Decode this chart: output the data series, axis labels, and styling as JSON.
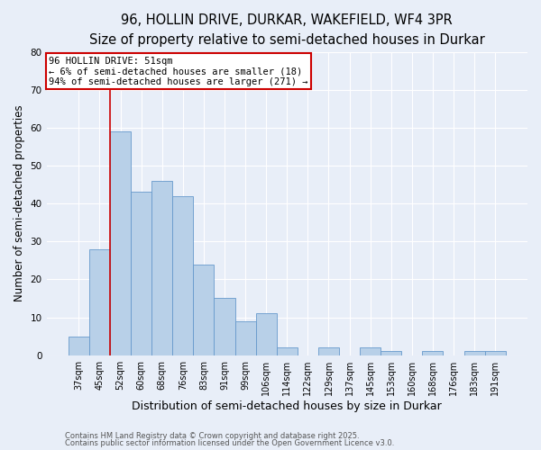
{
  "title": "96, HOLLIN DRIVE, DURKAR, WAKEFIELD, WF4 3PR",
  "subtitle": "Size of property relative to semi-detached houses in Durkar",
  "xlabel": "Distribution of semi-detached houses by size in Durkar",
  "ylabel": "Number of semi-detached properties",
  "bin_labels": [
    "37sqm",
    "45sqm",
    "52sqm",
    "60sqm",
    "68sqm",
    "76sqm",
    "83sqm",
    "91sqm",
    "99sqm",
    "106sqm",
    "114sqm",
    "122sqm",
    "129sqm",
    "137sqm",
    "145sqm",
    "153sqm",
    "160sqm",
    "168sqm",
    "176sqm",
    "183sqm",
    "191sqm"
  ],
  "bar_heights": [
    5,
    28,
    59,
    43,
    46,
    42,
    24,
    15,
    9,
    11,
    2,
    0,
    2,
    0,
    2,
    1,
    0,
    1,
    0,
    1,
    1
  ],
  "bar_color": "#b8d0e8",
  "bar_edge_color": "#6699cc",
  "highlight_line_color": "#cc0000",
  "ylim": [
    0,
    80
  ],
  "yticks": [
    0,
    10,
    20,
    30,
    40,
    50,
    60,
    70,
    80
  ],
  "annotation_title": "96 HOLLIN DRIVE: 51sqm",
  "annotation_line1": "← 6% of semi-detached houses are smaller (18)",
  "annotation_line2": "94% of semi-detached houses are larger (271) →",
  "annotation_box_color": "#cc0000",
  "footer_line1": "Contains HM Land Registry data © Crown copyright and database right 2025.",
  "footer_line2": "Contains public sector information licensed under the Open Government Licence v3.0.",
  "background_color": "#e8eef8",
  "plot_background": "#e8eef8",
  "grid_color": "#ffffff",
  "title_fontsize": 10.5,
  "subtitle_fontsize": 9.5,
  "ylabel_fontsize": 8.5,
  "xlabel_fontsize": 9,
  "tick_fontsize": 7,
  "annotation_fontsize": 7.5,
  "footer_fontsize": 6
}
